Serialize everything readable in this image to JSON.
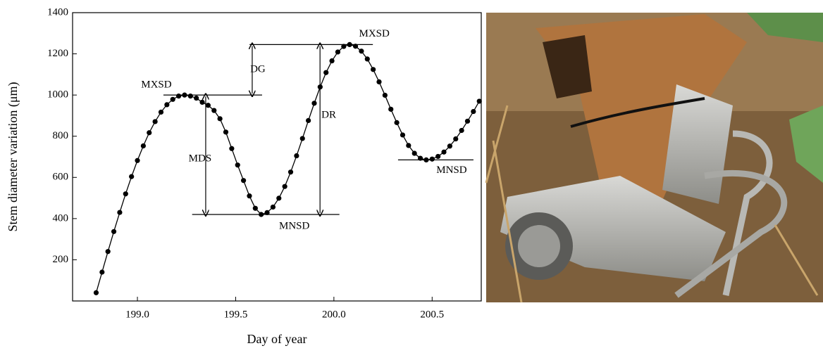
{
  "chart_data": {
    "type": "line",
    "x_label": "Day of year",
    "y_label": "Stem diameter variation (μm)",
    "color": "#000000",
    "x": [
      198.79,
      198.82,
      198.85,
      198.88,
      198.91,
      198.94,
      198.97,
      199.0,
      199.03,
      199.06,
      199.09,
      199.12,
      199.15,
      199.18,
      199.21,
      199.24,
      199.27,
      199.3,
      199.33,
      199.36,
      199.39,
      199.42,
      199.45,
      199.48,
      199.51,
      199.54,
      199.57,
      199.6,
      199.63,
      199.66,
      199.69,
      199.72,
      199.75,
      199.78,
      199.81,
      199.84,
      199.87,
      199.9,
      199.93,
      199.96,
      199.99,
      200.02,
      200.05,
      200.08,
      200.11,
      200.14,
      200.17,
      200.2,
      200.23,
      200.26,
      200.29,
      200.32,
      200.35,
      200.38,
      200.41,
      200.44,
      200.47,
      200.5,
      200.53,
      200.56,
      200.59,
      200.62,
      200.65,
      200.68,
      200.71,
      200.74
    ],
    "values": [
      40,
      140,
      240,
      337,
      430,
      520,
      604,
      682,
      753,
      817,
      871,
      917,
      953,
      979,
      995,
      1000,
      995,
      985,
      965,
      950,
      925,
      885,
      820,
      740,
      660,
      585,
      510,
      450,
      420,
      429,
      456,
      499,
      556,
      626,
      705,
      789,
      876,
      960,
      1039,
      1109,
      1166,
      1209,
      1236,
      1245,
      1237,
      1213,
      1175,
      1124,
      1064,
      999,
      931,
      866,
      806,
      755,
      717,
      693,
      685,
      689,
      702,
      723,
      752,
      787,
      828,
      873,
      920,
      970
    ],
    "xlim": [
      198.67,
      200.75
    ],
    "ylim": [
      0,
      1400
    ],
    "xticks": [
      {
        "value": 199,
        "label": "199.0"
      },
      199.5,
      {
        "value": 200,
        "label": "200.0"
      },
      200.5
    ],
    "yticks": [
      200,
      400,
      600,
      800,
      1000,
      1200,
      1400
    ],
    "annotations": [
      "MXSD",
      "MXSD",
      "DG",
      "DR",
      "MDS",
      "MNSD",
      "MNSD"
    ]
  }
}
